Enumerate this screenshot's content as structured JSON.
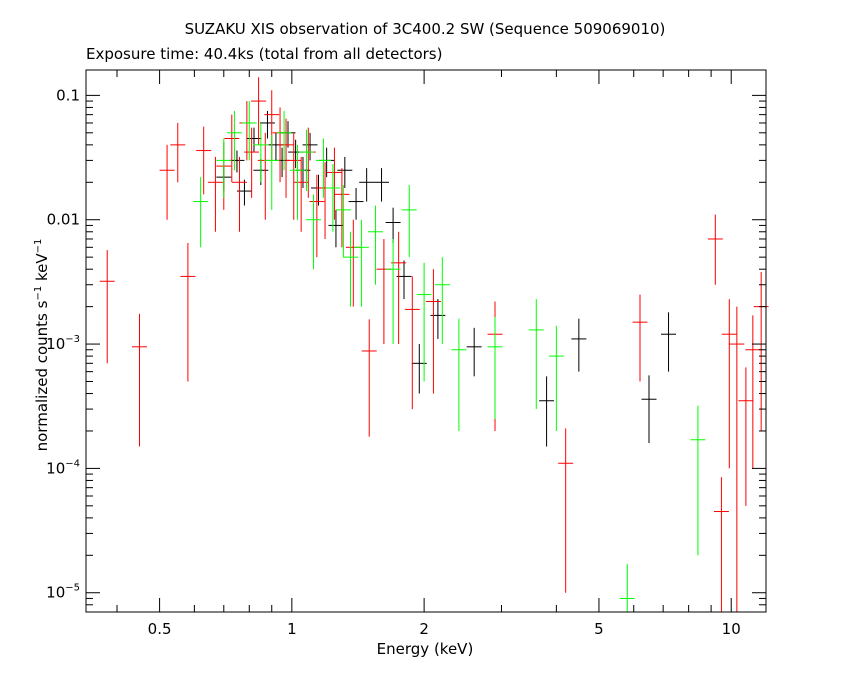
{
  "chart_data": {
    "type": "scatter",
    "title": "SUZAKU XIS observation of 3C400.2 SW (Sequence 509069010)",
    "subtitle": "Exposure time: 40.4ks (total from all detectors)",
    "xlabel": "Energy (keV)",
    "ylabel": {
      "prefix": "normalized counts s",
      "exp1": "−1",
      "middle": " keV",
      "exp2": "−1"
    },
    "xscale": "log",
    "yscale": "log",
    "xlim": [
      0.34,
      12
    ],
    "ylim": [
      7e-06,
      0.16
    ],
    "x_ticks": [
      "0.5",
      "1",
      "2",
      "5",
      "10"
    ],
    "y_ticks": [
      {
        "mantissa": "10",
        "exp": "−5"
      },
      {
        "mantissa": "10",
        "exp": "−4"
      },
      {
        "mantissa": "10",
        "exp": "−3"
      },
      {
        "mantissa": "",
        "exp": "",
        "plain": "0.01"
      },
      {
        "mantissa": "",
        "exp": "",
        "plain": "0.1"
      }
    ],
    "series": [
      {
        "color": "#000000",
        "points": [
          [
            0.7,
            0.022,
            0.005
          ],
          [
            0.75,
            0.03,
            0.006
          ],
          [
            0.78,
            0.017,
            0.004
          ],
          [
            0.82,
            0.045,
            0.01
          ],
          [
            0.85,
            0.025,
            0.006
          ],
          [
            0.88,
            0.06,
            0.015
          ],
          [
            0.92,
            0.04,
            0.01
          ],
          [
            0.95,
            0.03,
            0.008
          ],
          [
            0.98,
            0.05,
            0.012
          ],
          [
            1.02,
            0.035,
            0.009
          ],
          [
            1.06,
            0.025,
            0.007
          ],
          [
            1.1,
            0.04,
            0.01
          ],
          [
            1.15,
            0.018,
            0.005
          ],
          [
            1.2,
            0.03,
            0.008
          ],
          [
            1.26,
            0.009,
            0.003
          ],
          [
            1.32,
            0.025,
            0.007
          ],
          [
            1.4,
            0.014,
            0.004
          ],
          [
            1.48,
            0.02,
            0.006
          ],
          [
            1.6,
            0.02,
            0.006
          ],
          [
            1.7,
            0.0095,
            0.003
          ],
          [
            1.8,
            0.0035,
            0.0012
          ],
          [
            1.95,
            0.0007,
            0.0003
          ],
          [
            2.15,
            0.0017,
            0.0006
          ],
          [
            2.6,
            0.00095,
            0.0004
          ],
          [
            3.8,
            0.00035,
            0.0002
          ],
          [
            4.5,
            0.0011,
            0.0005
          ],
          [
            6.5,
            0.00036,
            0.0002
          ],
          [
            7.2,
            0.0012,
            0.0006
          ]
        ]
      },
      {
        "color": "#ff0000",
        "points": [
          [
            0.38,
            0.0032,
            0.0025
          ],
          [
            0.45,
            0.00095,
            0.0008
          ],
          [
            0.52,
            0.025,
            0.015
          ],
          [
            0.55,
            0.04,
            0.02
          ],
          [
            0.58,
            0.0035,
            0.003
          ],
          [
            0.63,
            0.036,
            0.02
          ],
          [
            0.67,
            0.02,
            0.012
          ],
          [
            0.7,
            0.027,
            0.015
          ],
          [
            0.73,
            0.045,
            0.025
          ],
          [
            0.76,
            0.02,
            0.012
          ],
          [
            0.79,
            0.06,
            0.03
          ],
          [
            0.81,
            0.035,
            0.02
          ],
          [
            0.84,
            0.09,
            0.05
          ],
          [
            0.87,
            0.03,
            0.02
          ],
          [
            0.9,
            0.07,
            0.04
          ],
          [
            0.94,
            0.05,
            0.03
          ],
          [
            0.97,
            0.04,
            0.025
          ],
          [
            1.01,
            0.03,
            0.02
          ],
          [
            1.05,
            0.02,
            0.012
          ],
          [
            1.09,
            0.035,
            0.02
          ],
          [
            1.14,
            0.014,
            0.009
          ],
          [
            1.19,
            0.018,
            0.011
          ],
          [
            1.25,
            0.024,
            0.014
          ],
          [
            1.3,
            0.016,
            0.01
          ],
          [
            1.38,
            0.006,
            0.004
          ],
          [
            1.5,
            0.00088,
            0.0007
          ],
          [
            1.62,
            0.004,
            0.003
          ],
          [
            1.75,
            0.0045,
            0.0035
          ],
          [
            1.88,
            0.0019,
            0.0016
          ],
          [
            2.1,
            0.0022,
            0.0018
          ],
          [
            2.9,
            0.0012,
            0.001
          ],
          [
            4.2,
            0.00011,
            0.0001
          ],
          [
            6.2,
            0.0015,
            0.001
          ],
          [
            9.2,
            0.007,
            0.004
          ],
          [
            9.5,
            4.5e-05,
            4e-05
          ],
          [
            9.9,
            0.0012,
            0.0011
          ],
          [
            10.3,
            0.001,
            0.001
          ],
          [
            10.8,
            0.00035,
            0.0003
          ],
          [
            11.2,
            0.0009,
            0.0008
          ],
          [
            11.7,
            0.002,
            0.0018
          ]
        ]
      },
      {
        "color": "#00ff00",
        "points": [
          [
            0.62,
            0.014,
            0.008
          ],
          [
            0.7,
            0.03,
            0.015
          ],
          [
            0.74,
            0.05,
            0.025
          ],
          [
            0.8,
            0.06,
            0.03
          ],
          [
            0.85,
            0.04,
            0.02
          ],
          [
            0.9,
            0.03,
            0.018
          ],
          [
            0.96,
            0.05,
            0.025
          ],
          [
            1.03,
            0.025,
            0.015
          ],
          [
            1.08,
            0.035,
            0.018
          ],
          [
            1.12,
            0.01,
            0.006
          ],
          [
            1.18,
            0.03,
            0.015
          ],
          [
            1.24,
            0.018,
            0.01
          ],
          [
            1.31,
            0.012,
            0.007
          ],
          [
            1.36,
            0.005,
            0.003
          ],
          [
            1.44,
            0.006,
            0.004
          ],
          [
            1.55,
            0.008,
            0.005
          ],
          [
            1.7,
            0.004,
            0.003
          ],
          [
            1.85,
            0.012,
            0.007
          ],
          [
            2.0,
            0.0025,
            0.002
          ],
          [
            2.2,
            0.003,
            0.002
          ],
          [
            2.4,
            0.0009,
            0.0007
          ],
          [
            2.9,
            0.00095,
            0.0007
          ],
          [
            3.6,
            0.0013,
            0.001
          ],
          [
            4.0,
            0.0008,
            0.0006
          ],
          [
            5.8,
            9e-06,
            8e-06
          ],
          [
            8.4,
            0.00017,
            0.00015
          ]
        ]
      }
    ]
  }
}
